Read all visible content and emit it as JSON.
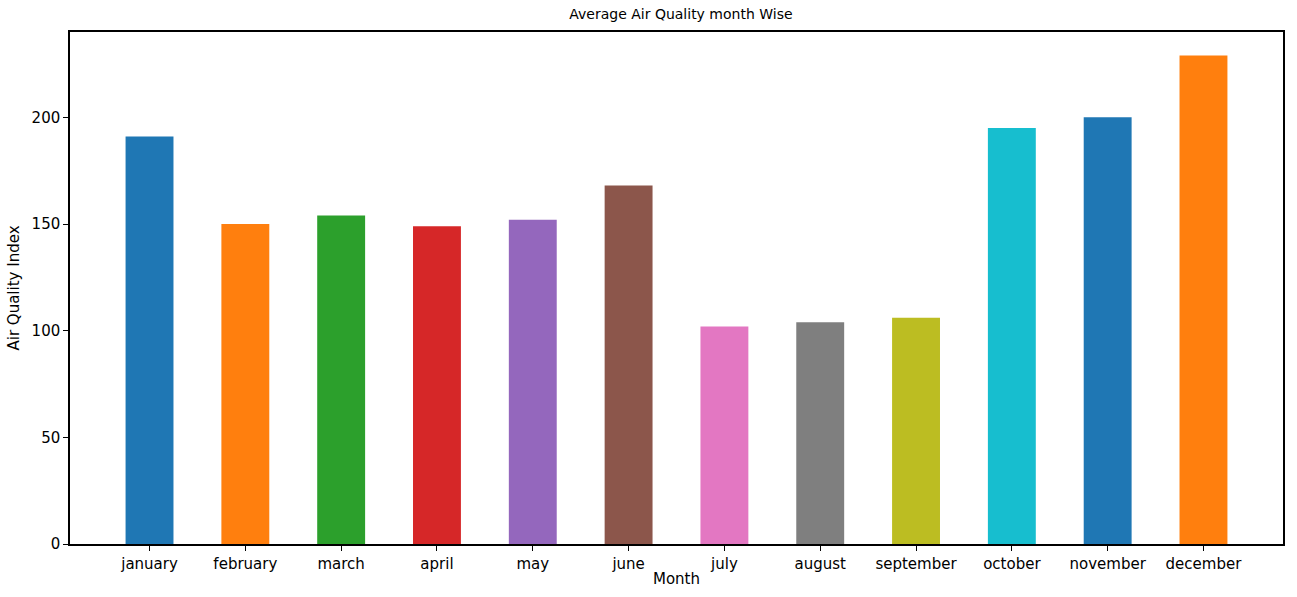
{
  "chart_data": {
    "type": "bar",
    "title": "Average Air Quality month Wise",
    "x_label": "Month",
    "y_label": "Air Quality Index",
    "categories": [
      "january",
      "february",
      "march",
      "april",
      "may",
      "june",
      "july",
      "august",
      "september",
      "october",
      "november",
      "december"
    ],
    "values": [
      191,
      150,
      154,
      149,
      152,
      168,
      102,
      104,
      106,
      195,
      200,
      229
    ],
    "colors": [
      "#1f77b4",
      "#ff7f0e",
      "#2ca02c",
      "#d62728",
      "#9467bd",
      "#8c564b",
      "#e377c2",
      "#7f7f7f",
      "#bcbd22",
      "#17becf",
      "#1f77b4",
      "#ff7f0e"
    ],
    "ylim": [
      0,
      240
    ],
    "yticks": [
      0,
      50,
      100,
      150,
      200
    ],
    "grid": false
  }
}
